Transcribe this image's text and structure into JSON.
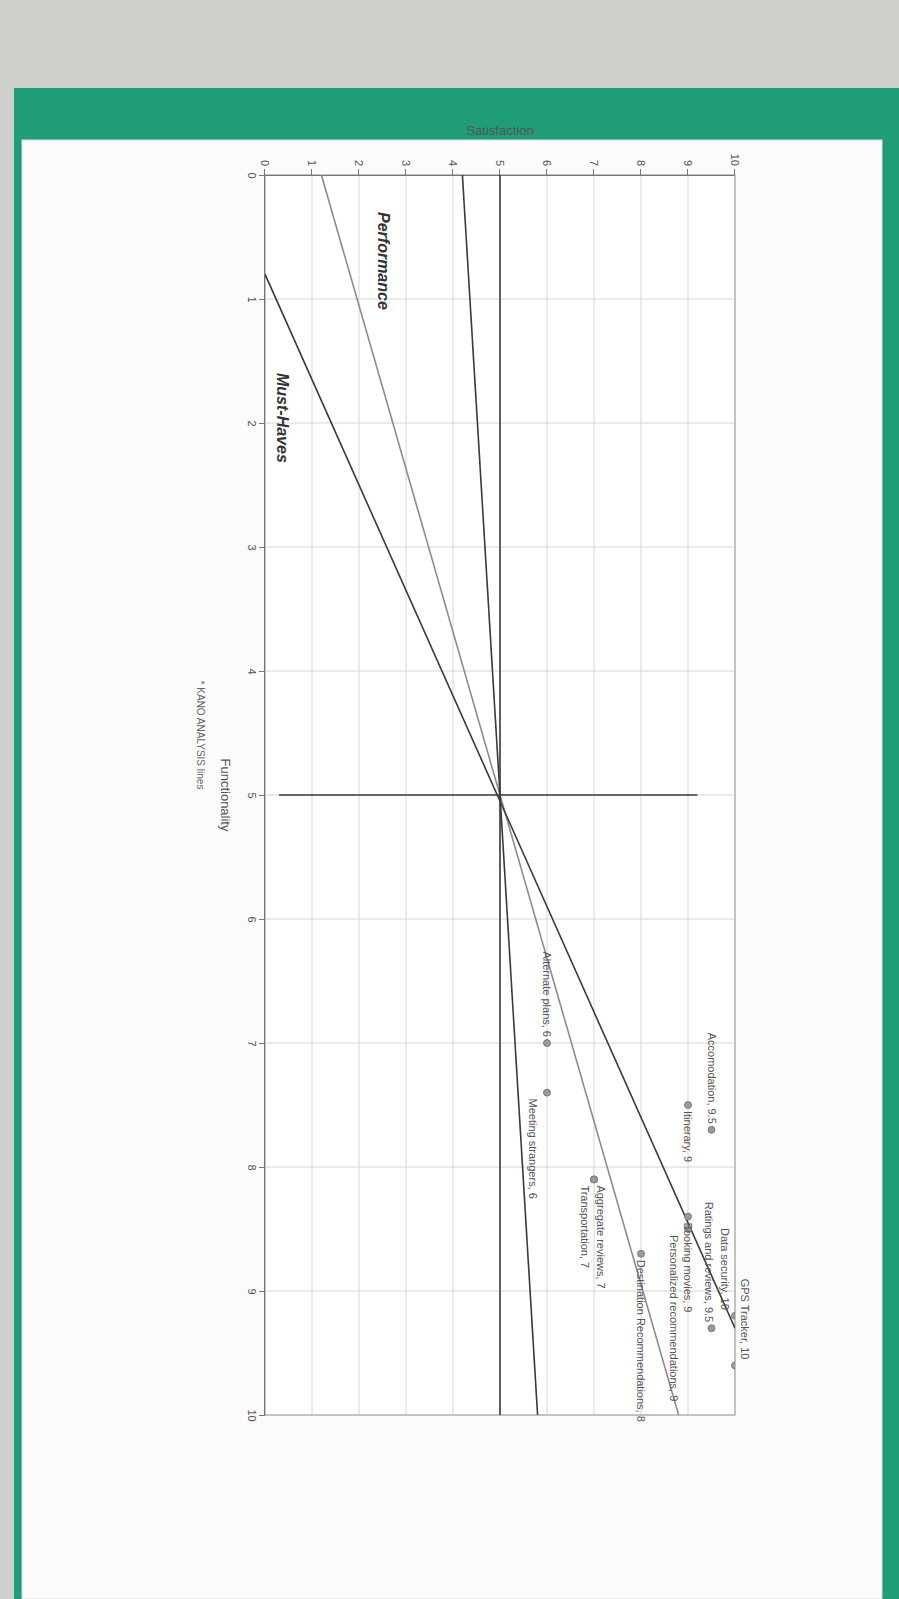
{
  "chart_data": {
    "type": "scatter",
    "x_label": "Functionality",
    "y_label": "Satisfaction",
    "annotations": [
      "* KANO ANALYSIS lines"
    ],
    "xlim": [
      0,
      10
    ],
    "ylim": [
      0,
      10
    ],
    "xticks": [
      0,
      1,
      2,
      3,
      4,
      5,
      6,
      7,
      8,
      9,
      10
    ],
    "yticks": [
      0,
      1,
      2,
      3,
      4,
      5,
      6,
      7,
      8,
      9,
      10
    ],
    "grid": true,
    "series": [
      {
        "name": "Performance",
        "type": "line",
        "color": "#8c8c8c",
        "x": [
          0,
          10
        ],
        "values": [
          1.2,
          8.8
        ]
      },
      {
        "name": "Must-Haves",
        "type": "line",
        "color": "#3a3a3a",
        "x": [
          0.8,
          9.3
        ],
        "values": [
          0,
          10
        ]
      },
      {
        "type": "line",
        "color": "#3a3a3a",
        "x": [
          0,
          10
        ],
        "values": [
          4.2,
          5.8
        ]
      },
      {
        "type": "line",
        "color": "#3a3a3a",
        "x": [
          0,
          10
        ],
        "values": [
          5,
          5
        ]
      },
      {
        "type": "line",
        "color": "#3a3a3a",
        "x": [
          5,
          5
        ],
        "values": [
          0.3,
          9.2
        ]
      },
      {
        "type": "scatter",
        "color": "#9a9a9a",
        "marker": "circle",
        "data_labels": true,
        "x": [
          9.6,
          9.2,
          9.3,
          7.7,
          7.5,
          8.4,
          8.5,
          8.7,
          8.1,
          8.1,
          7.0,
          7.4
        ],
        "values": [
          10,
          10,
          9.5,
          9.5,
          9,
          9,
          9,
          8,
          7,
          7,
          6,
          6
        ],
        "value_labels": [
          "GPS Tracker, 10",
          "Data security, 10",
          "Ratings and reviews, 9.5",
          "Accomodation, 9.5",
          "Itinerary, 9",
          "Booking movies, 9",
          "Personalized recommendations, 9",
          "Destination Recommendations, 8",
          "Aggregate reviews, 7",
          "Transportation, 7",
          "Alternate plans, 6",
          "Meeting strangers, 6"
        ]
      }
    ]
  }
}
